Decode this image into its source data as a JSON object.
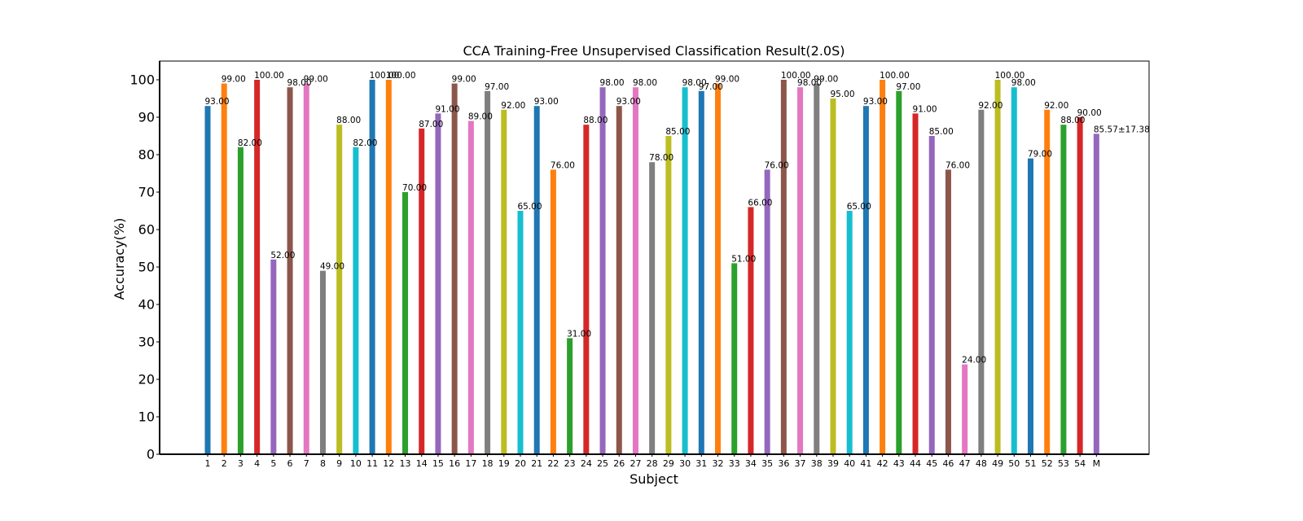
{
  "chart_data": {
    "type": "bar",
    "title": "CCA Training-Free Unsupervised Classification Result(2.0S)",
    "xlabel": "Subject",
    "ylabel": "Accuracy(%)",
    "ylim": [
      0,
      105
    ],
    "yticks": [
      0,
      10,
      20,
      30,
      40,
      50,
      60,
      70,
      80,
      90,
      100
    ],
    "grid": false,
    "categories": [
      "1",
      "2",
      "3",
      "4",
      "5",
      "6",
      "7",
      "8",
      "9",
      "10",
      "11",
      "12",
      "13",
      "14",
      "15",
      "16",
      "17",
      "18",
      "19",
      "20",
      "21",
      "22",
      "23",
      "24",
      "25",
      "26",
      "27",
      "28",
      "29",
      "30",
      "31",
      "32",
      "33",
      "34",
      "35",
      "36",
      "37",
      "38",
      "39",
      "40",
      "41",
      "42",
      "43",
      "44",
      "45",
      "46",
      "47",
      "48",
      "49",
      "50",
      "51",
      "52",
      "53",
      "54",
      "M"
    ],
    "values": [
      93,
      99,
      82,
      100,
      52,
      98,
      99,
      49,
      88,
      82,
      100,
      100,
      70,
      87,
      91,
      99,
      89,
      97,
      92,
      65,
      93,
      76,
      31,
      88,
      98,
      93,
      98,
      78,
      85,
      98,
      97,
      99,
      51,
      66,
      76,
      100,
      98,
      99,
      95,
      65,
      93,
      100,
      97,
      91,
      85,
      76,
      24,
      92,
      100,
      98,
      79,
      92,
      88,
      90,
      85.57
    ],
    "value_labels": [
      "93.00",
      "99.00",
      "82.00",
      "100.00",
      "52.00",
      "98.00",
      "99.00",
      "49.00",
      "88.00",
      "82.00",
      "100.00",
      "100.00",
      "70.00",
      "87.00",
      "91.00",
      "99.00",
      "89.00",
      "97.00",
      "92.00",
      "65.00",
      "93.00",
      "76.00",
      "31.00",
      "88.00",
      "98.00",
      "93.00",
      "98.00",
      "78.00",
      "85.00",
      "98.00",
      "97.00",
      "99.00",
      "51.00",
      "66.00",
      "76.00",
      "100.00",
      "98.00",
      "99.00",
      "95.00",
      "65.00",
      "93.00",
      "100.00",
      "97.00",
      "91.00",
      "85.00",
      "76.00",
      "24.00",
      "92.00",
      "100.00",
      "98.00",
      "79.00",
      "92.00",
      "88.00",
      "90.00",
      "85.57±17.38"
    ],
    "colors": [
      "#1f77b4",
      "#ff7f0e",
      "#2ca02c",
      "#d62728",
      "#9467bd",
      "#8c564b",
      "#e377c2",
      "#7f7f7f",
      "#bcbd22",
      "#17becf"
    ],
    "mean_label_color": "#ff0000"
  }
}
